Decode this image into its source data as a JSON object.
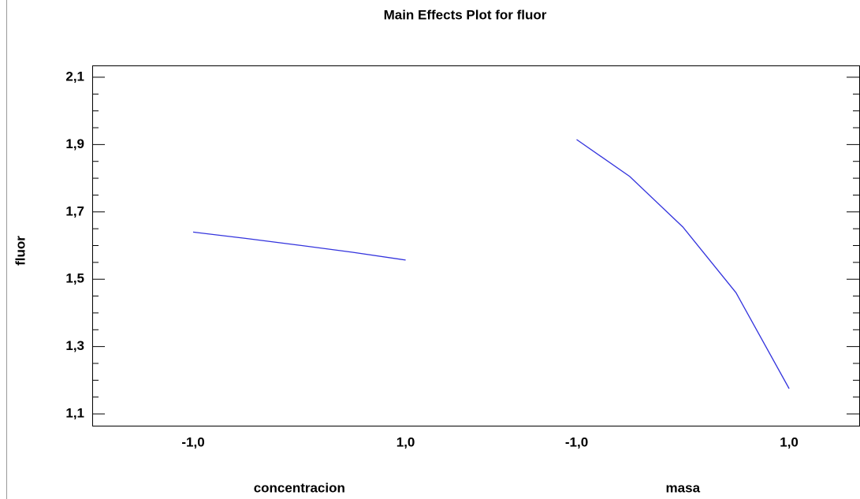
{
  "chart_data": {
    "type": "line",
    "title": "Main Effects Plot for fluor",
    "y_label": "fluor",
    "ylim": [
      1.065,
      2.135
    ],
    "yticks": [
      {
        "value": 1.1,
        "label": "1,1"
      },
      {
        "value": 1.3,
        "label": "1,3"
      },
      {
        "value": 1.5,
        "label": "1,5"
      },
      {
        "value": 1.7,
        "label": "1,7"
      },
      {
        "value": 1.9,
        "label": "1,9"
      },
      {
        "value": 2.1,
        "label": "2,1"
      }
    ],
    "yminor": [
      1.15,
      1.2,
      1.25,
      1.35,
      1.4,
      1.45,
      1.55,
      1.6,
      1.65,
      1.75,
      1.8,
      1.85,
      1.95,
      2.0,
      2.05
    ],
    "color": "#3333dd",
    "panels": [
      {
        "name": "concentracion",
        "xlim": [
          -1.95,
          1.66
        ],
        "xticks": [
          {
            "value": -1,
            "label": "-1,0"
          },
          {
            "value": 1,
            "label": "1,0"
          }
        ],
        "x": [
          -1,
          -0.5,
          0,
          0.5,
          1
        ],
        "values": [
          1.64,
          1.621,
          1.601,
          1.58,
          1.557
        ]
      },
      {
        "name": "masa",
        "xlim": [
          -1.95,
          1.66
        ],
        "xticks": [
          {
            "value": -1,
            "label": "-1,0"
          },
          {
            "value": 1,
            "label": "1,0"
          }
        ],
        "x": [
          -1,
          -0.5,
          0,
          0.5,
          1
        ],
        "values": [
          1.915,
          1.805,
          1.655,
          1.46,
          1.175
        ]
      }
    ]
  }
}
